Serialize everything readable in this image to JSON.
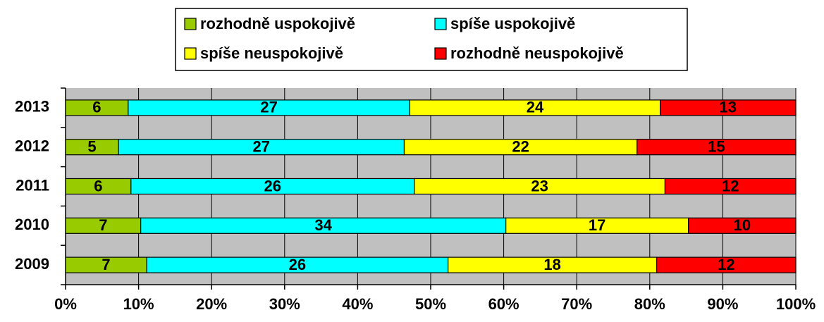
{
  "chart_data": {
    "type": "bar",
    "orientation": "horizontal",
    "stacking": "percent",
    "categories": [
      "2009",
      "2010",
      "2011",
      "2012",
      "2013"
    ],
    "series": [
      {
        "name": "rozhodně uspokojivě",
        "color": "#99cc00",
        "values": [
          7,
          7,
          6,
          5,
          6
        ]
      },
      {
        "name": "spíše uspokojivě",
        "color": "#00ffff",
        "values": [
          26,
          34,
          26,
          27,
          27
        ]
      },
      {
        "name": "spíše neuspokojivě",
        "color": "#ffff00",
        "values": [
          18,
          17,
          23,
          22,
          24
        ]
      },
      {
        "name": "rozhodně neuspokojivě",
        "color": "#ff0000",
        "values": [
          12,
          10,
          12,
          15,
          13
        ]
      }
    ],
    "xlim": [
      0,
      100
    ],
    "xticks": [
      {
        "value": 0,
        "label": "0%"
      },
      {
        "value": 10,
        "label": "10%"
      },
      {
        "value": 20,
        "label": "20%"
      },
      {
        "value": 30,
        "label": "30%"
      },
      {
        "value": 40,
        "label": "40%"
      },
      {
        "value": 50,
        "label": "50%"
      },
      {
        "value": 60,
        "label": "60%"
      },
      {
        "value": 70,
        "label": "70%"
      },
      {
        "value": 80,
        "label": "80%"
      },
      {
        "value": 90,
        "label": "90%"
      },
      {
        "value": 100,
        "label": "100%"
      }
    ],
    "grid": true,
    "legend": "top"
  }
}
